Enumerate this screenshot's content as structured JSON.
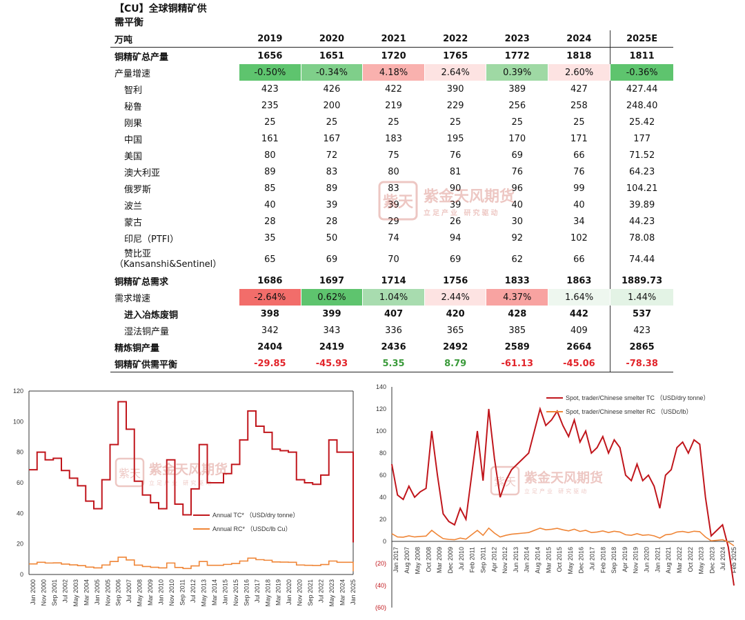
{
  "table": {
    "title_line1": "【CU】全球铜精矿供",
    "title_line2": "需平衡",
    "header": [
      "万吨",
      "2019",
      "2020",
      "2021",
      "2022",
      "2023",
      "2024",
      "2025E"
    ],
    "rows": [
      {
        "kind": "bold",
        "label": "铜精矿总产量",
        "values": [
          "1656",
          "1651",
          "1720",
          "1765",
          "1772",
          "1818",
          "1811"
        ]
      },
      {
        "kind": "growth",
        "label": "产量增速",
        "values": [
          "-0.50%",
          "-0.34%",
          "4.18%",
          "2.64%",
          "0.39%",
          "2.60%",
          "-0.36%"
        ],
        "colors": [
          "#5ec46e",
          "#7fcf8a",
          "#f9b1ae",
          "#fde3e2",
          "#9fd9a4",
          "#fde3e2",
          "#5ec46e"
        ]
      },
      {
        "kind": "sub",
        "label": "智利",
        "values": [
          "423",
          "426",
          "422",
          "390",
          "389",
          "427",
          "427.44"
        ]
      },
      {
        "kind": "sub",
        "label": "秘鲁",
        "values": [
          "235",
          "200",
          "219",
          "229",
          "256",
          "258",
          "248.40"
        ]
      },
      {
        "kind": "sub",
        "label": "刚果",
        "values": [
          "25",
          "25",
          "25",
          "25",
          "25",
          "25",
          "25.42"
        ]
      },
      {
        "kind": "sub",
        "label": "中国",
        "values": [
          "161",
          "167",
          "183",
          "195",
          "170",
          "171",
          "177"
        ]
      },
      {
        "kind": "sub",
        "label": "美国",
        "values": [
          "80",
          "72",
          "75",
          "76",
          "69",
          "66",
          "71.52"
        ]
      },
      {
        "kind": "sub",
        "label": "澳大利亚",
        "values": [
          "89",
          "83",
          "80",
          "81",
          "76",
          "76",
          "64.23"
        ]
      },
      {
        "kind": "sub",
        "label": "俄罗斯",
        "values": [
          "85",
          "89",
          "83",
          "90",
          "96",
          "99",
          "104.21"
        ]
      },
      {
        "kind": "sub",
        "label": "波兰",
        "values": [
          "40",
          "39",
          "39",
          "39",
          "40",
          "40",
          "39.89"
        ]
      },
      {
        "kind": "sub",
        "label": "蒙古",
        "values": [
          "28",
          "28",
          "29",
          "26",
          "30",
          "34",
          "44.23"
        ]
      },
      {
        "kind": "sub",
        "label": "印尼（PTFI）",
        "values": [
          "35",
          "50",
          "74",
          "94",
          "92",
          "102",
          "78.08"
        ]
      },
      {
        "kind": "subtall",
        "label": "赞比亚",
        "label2": "（Kansanshi&Sentinel）",
        "values": [
          "65",
          "69",
          "70",
          "69",
          "62",
          "66",
          "74.44"
        ]
      },
      {
        "kind": "bold",
        "label": "铜精矿总需求",
        "values": [
          "1686",
          "1697",
          "1714",
          "1756",
          "1833",
          "1863",
          "1889.73"
        ]
      },
      {
        "kind": "growth",
        "label": "需求增速",
        "values": [
          "-2.64%",
          "0.62%",
          "1.04%",
          "2.44%",
          "4.37%",
          "1.64%",
          "1.44%"
        ],
        "colors": [
          "#f26d6a",
          "#5ec46e",
          "#a8dcaf",
          "#fde3e2",
          "#f8a3a1",
          "#eef7ef",
          "#e3f3e5"
        ]
      },
      {
        "kind": "subbold",
        "label": "进入冶炼废铜",
        "values": [
          "398",
          "399",
          "407",
          "420",
          "428",
          "442",
          "537"
        ]
      },
      {
        "kind": "sub",
        "label": "湿法铜产量",
        "values": [
          "342",
          "343",
          "336",
          "365",
          "385",
          "409",
          "423"
        ]
      },
      {
        "kind": "bold",
        "label": "精炼铜产量",
        "values": [
          "2404",
          "2419",
          "2436",
          "2492",
          "2589",
          "2664",
          "2865"
        ]
      },
      {
        "kind": "balance",
        "label": "铜精矿供需平衡",
        "values": [
          "-29.85",
          "-45.93",
          "5.35",
          "8.79",
          "-61.13",
          "-45.06",
          "-78.38"
        ]
      }
    ]
  },
  "watermark": {
    "brand": "紫金天风期货",
    "slogan": "立足产业  研究驱动",
    "seal": "紫天"
  },
  "chart_data": [
    {
      "type": "line",
      "ylim": [
        0,
        120
      ],
      "yticks": [
        0,
        20,
        40,
        60,
        80,
        100,
        120
      ],
      "xticks": [
        "Jan 2000",
        "Nov 2000",
        "Sep 2001",
        "Jul 2002",
        "May 2003",
        "Mar 2004",
        "Jan 2005",
        "Nov 2005",
        "Sep 2006",
        "Jul 2007",
        "May 2008",
        "Mar 2009",
        "Jan 2010",
        "Nov 2010",
        "Sep 2011",
        "Jul 2012",
        "May 2013",
        "Mar 2014",
        "Jan 2015",
        "Nov 2015",
        "Sep 2016",
        "Jul 2017",
        "May 2018",
        "Mar 2019",
        "Jan 2020",
        "Nov 2020",
        "Sep 2021",
        "Jul 2022",
        "May 2023",
        "Mar 2024",
        "Jan 2025"
      ],
      "series": [
        {
          "name": "Annual TC* （USD/dry tonne）",
          "color": "#c0151b",
          "values": [
            68.5,
            80,
            75,
            76,
            68,
            63,
            58,
            48,
            43,
            62,
            85,
            113,
            95,
            61,
            52,
            47,
            43,
            75,
            46,
            39,
            56,
            85,
            60,
            60,
            66,
            72,
            88,
            107,
            97,
            93,
            82,
            81,
            80,
            62,
            60,
            59,
            65,
            88,
            80,
            80,
            21
          ]
        },
        {
          "name": "Annual RC* （USDc/lb Cu）",
          "color": "#ef8536",
          "values": [
            6.9,
            8,
            7.5,
            7.6,
            6.8,
            6.3,
            5.8,
            4.8,
            4.3,
            6.2,
            8.5,
            11.3,
            9.5,
            6.1,
            5.2,
            4.7,
            4.3,
            7.5,
            4.6,
            3.9,
            5.6,
            8.5,
            6,
            6,
            6.6,
            7.2,
            8.8,
            10.7,
            9.7,
            9.3,
            8.2,
            8.1,
            8,
            6.2,
            6,
            5.9,
            6.5,
            8.8,
            8,
            8,
            2.1
          ]
        }
      ]
    },
    {
      "type": "line",
      "ylim": [
        -60,
        140
      ],
      "yticks": [
        140,
        120,
        100,
        80,
        60,
        40,
        20,
        0,
        -20,
        -40,
        -60
      ],
      "ytick_labels": [
        "140",
        "120",
        "100",
        "80",
        "60",
        "40",
        "20",
        "0",
        "(20)",
        "(40)",
        "(60)"
      ],
      "xticks": [
        "Jan 2017",
        "Aug 2007",
        "May 2008",
        "Oct 2008",
        "Mar 2009",
        "Dec 2009",
        "Jul 2010",
        "Feb 2011",
        "Sep 2011",
        "Apr 2012",
        "Nov 2012",
        "Jun 2013",
        "Jan 2014",
        "Aug 2014",
        "Mar 2015",
        "Oct 2015",
        "May 2016",
        "Dec 2016",
        "Jul 2017",
        "Feb 2018",
        "Sep 2018",
        "Apr 2019",
        "Nov 2019",
        "Jun 2020",
        "Jan 2021",
        "Aug 2021",
        "Mar 2022",
        "Oct 2022",
        "May 2023",
        "Dec 2023",
        "Jul 2024",
        "Feb 2025"
      ],
      "series": [
        {
          "name": "Spot, trader/Chinese smelter TC （USD/dry tonne）",
          "color": "#c0151b",
          "values": [
            70,
            42,
            38,
            50,
            40,
            45,
            48,
            100,
            60,
            25,
            18,
            15,
            30,
            20,
            60,
            100,
            55,
            120,
            75,
            40,
            55,
            65,
            70,
            75,
            80,
            100,
            120,
            105,
            110,
            118,
            105,
            95,
            110,
            90,
            100,
            80,
            85,
            95,
            80,
            92,
            85,
            60,
            55,
            70,
            55,
            60,
            50,
            30,
            60,
            65,
            85,
            90,
            80,
            92,
            88,
            40,
            5,
            10,
            15,
            -5,
            -40
          ]
        },
        {
          "name": "Spot, trader/Chinese smelter RC （USDc/lb）",
          "color": "#ef8536",
          "values": [
            7,
            4,
            3.8,
            5,
            4,
            4.5,
            4.8,
            10,
            6,
            2.5,
            1.8,
            1.5,
            3,
            2,
            6,
            10,
            5.5,
            12,
            7.5,
            4,
            5.5,
            6.5,
            7,
            7.5,
            8,
            10,
            12,
            10.5,
            11,
            11.8,
            10.5,
            9.5,
            11,
            9,
            10,
            8,
            8.5,
            9.5,
            8,
            9.2,
            8.5,
            6,
            5.5,
            7,
            5.5,
            6,
            5,
            3,
            6,
            6.5,
            8.5,
            9,
            8,
            9.2,
            8.8,
            4,
            0.5,
            1,
            1.5,
            -0.5,
            -4
          ]
        }
      ]
    }
  ]
}
